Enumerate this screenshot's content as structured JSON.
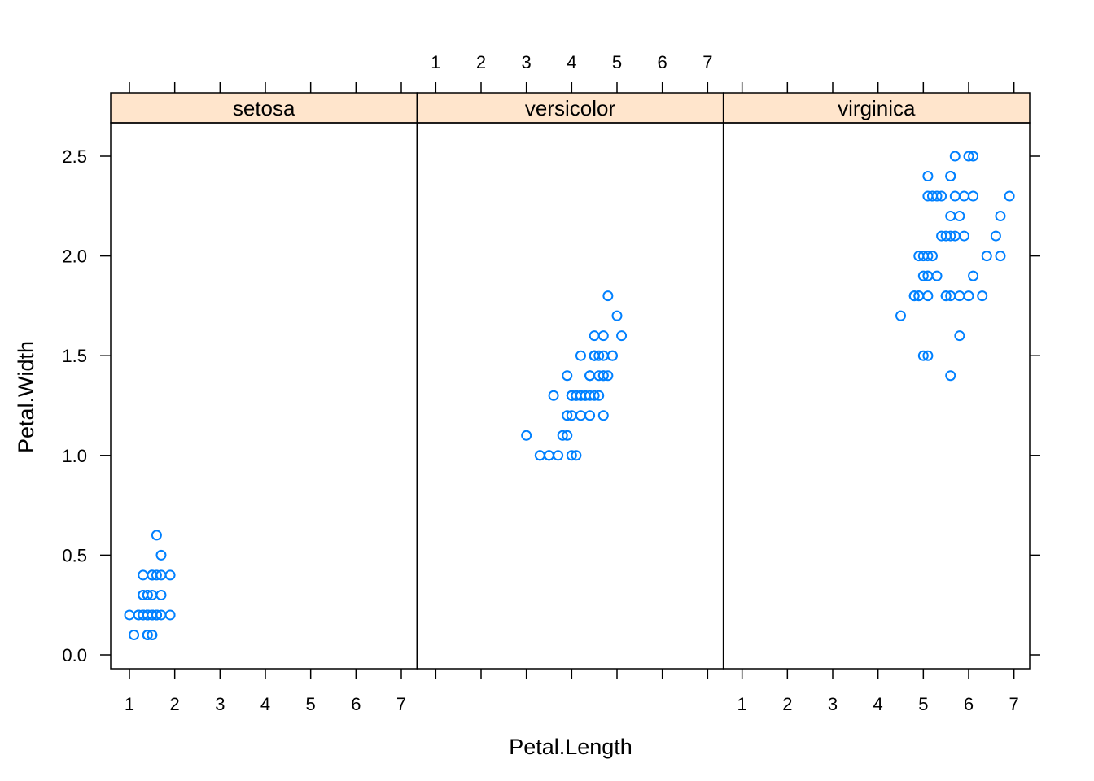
{
  "chart_data": {
    "type": "scatter",
    "layout": "lattice panels, 3 columns x 1 row",
    "xlabel": "Petal.Length",
    "ylabel": "Petal.Width",
    "xlim": [
      0.6,
      7.35
    ],
    "ylim": [
      -0.07,
      2.67
    ],
    "x_ticks": [
      "1",
      "2",
      "3",
      "4",
      "5",
      "6",
      "7"
    ],
    "y_ticks": [
      "0.0",
      "0.5",
      "1.0",
      "1.5",
      "2.0",
      "2.5"
    ],
    "point_color": "#0080ff",
    "strip_color": "#ffe5cc",
    "grid": false,
    "panels": [
      {
        "label": "setosa",
        "points": [
          [
            1.4,
            0.2
          ],
          [
            1.4,
            0.2
          ],
          [
            1.3,
            0.2
          ],
          [
            1.5,
            0.2
          ],
          [
            1.4,
            0.2
          ],
          [
            1.7,
            0.4
          ],
          [
            1.4,
            0.3
          ],
          [
            1.5,
            0.2
          ],
          [
            1.4,
            0.2
          ],
          [
            1.5,
            0.1
          ],
          [
            1.5,
            0.2
          ],
          [
            1.6,
            0.2
          ],
          [
            1.4,
            0.1
          ],
          [
            1.1,
            0.1
          ],
          [
            1.2,
            0.2
          ],
          [
            1.5,
            0.4
          ],
          [
            1.3,
            0.4
          ],
          [
            1.4,
            0.3
          ],
          [
            1.7,
            0.3
          ],
          [
            1.5,
            0.3
          ],
          [
            1.7,
            0.2
          ],
          [
            1.5,
            0.4
          ],
          [
            1.0,
            0.2
          ],
          [
            1.7,
            0.5
          ],
          [
            1.9,
            0.2
          ],
          [
            1.6,
            0.2
          ],
          [
            1.6,
            0.4
          ],
          [
            1.5,
            0.2
          ],
          [
            1.4,
            0.2
          ],
          [
            1.6,
            0.2
          ],
          [
            1.6,
            0.2
          ],
          [
            1.5,
            0.4
          ],
          [
            1.5,
            0.1
          ],
          [
            1.4,
            0.2
          ],
          [
            1.5,
            0.2
          ],
          [
            1.2,
            0.2
          ],
          [
            1.3,
            0.2
          ],
          [
            1.4,
            0.1
          ],
          [
            1.3,
            0.2
          ],
          [
            1.5,
            0.2
          ],
          [
            1.3,
            0.3
          ],
          [
            1.3,
            0.3
          ],
          [
            1.3,
            0.2
          ],
          [
            1.6,
            0.6
          ],
          [
            1.9,
            0.4
          ],
          [
            1.4,
            0.3
          ],
          [
            1.6,
            0.2
          ],
          [
            1.4,
            0.2
          ],
          [
            1.5,
            0.2
          ],
          [
            1.4,
            0.2
          ]
        ]
      },
      {
        "label": "versicolor",
        "points": [
          [
            4.7,
            1.4
          ],
          [
            4.5,
            1.5
          ],
          [
            4.9,
            1.5
          ],
          [
            4.0,
            1.3
          ],
          [
            4.6,
            1.5
          ],
          [
            4.5,
            1.3
          ],
          [
            4.7,
            1.6
          ],
          [
            3.3,
            1.0
          ],
          [
            4.6,
            1.3
          ],
          [
            3.9,
            1.4
          ],
          [
            3.5,
            1.0
          ],
          [
            4.2,
            1.5
          ],
          [
            4.0,
            1.0
          ],
          [
            4.7,
            1.4
          ],
          [
            3.6,
            1.3
          ],
          [
            4.4,
            1.4
          ],
          [
            4.5,
            1.5
          ],
          [
            4.1,
            1.0
          ],
          [
            4.5,
            1.5
          ],
          [
            3.9,
            1.1
          ],
          [
            4.8,
            1.8
          ],
          [
            4.0,
            1.3
          ],
          [
            4.9,
            1.5
          ],
          [
            4.7,
            1.2
          ],
          [
            4.3,
            1.3
          ],
          [
            4.4,
            1.4
          ],
          [
            4.8,
            1.4
          ],
          [
            5.0,
            1.7
          ],
          [
            4.5,
            1.5
          ],
          [
            3.5,
            1.0
          ],
          [
            3.8,
            1.1
          ],
          [
            3.7,
            1.0
          ],
          [
            3.9,
            1.2
          ],
          [
            5.1,
            1.6
          ],
          [
            4.5,
            1.5
          ],
          [
            4.5,
            1.6
          ],
          [
            4.7,
            1.5
          ],
          [
            4.4,
            1.3
          ],
          [
            4.1,
            1.3
          ],
          [
            4.0,
            1.3
          ],
          [
            4.4,
            1.2
          ],
          [
            4.6,
            1.4
          ],
          [
            4.0,
            1.2
          ],
          [
            3.3,
            1.0
          ],
          [
            4.2,
            1.3
          ],
          [
            4.2,
            1.2
          ],
          [
            4.2,
            1.3
          ],
          [
            4.3,
            1.3
          ],
          [
            3.0,
            1.1
          ],
          [
            4.1,
            1.3
          ]
        ]
      },
      {
        "label": "virginica",
        "points": [
          [
            6.0,
            2.5
          ],
          [
            5.1,
            1.9
          ],
          [
            5.9,
            2.1
          ],
          [
            5.6,
            1.8
          ],
          [
            5.8,
            2.2
          ],
          [
            6.6,
            2.1
          ],
          [
            4.5,
            1.7
          ],
          [
            6.3,
            1.8
          ],
          [
            5.8,
            1.8
          ],
          [
            6.1,
            2.5
          ],
          [
            5.1,
            2.0
          ],
          [
            5.3,
            1.9
          ],
          [
            5.5,
            2.1
          ],
          [
            5.0,
            2.0
          ],
          [
            5.1,
            2.4
          ],
          [
            5.3,
            2.3
          ],
          [
            5.5,
            1.8
          ],
          [
            6.7,
            2.2
          ],
          [
            6.9,
            2.3
          ],
          [
            5.0,
            1.5
          ],
          [
            5.7,
            2.3
          ],
          [
            4.9,
            2.0
          ],
          [
            6.7,
            2.0
          ],
          [
            4.9,
            1.8
          ],
          [
            5.7,
            2.1
          ],
          [
            6.0,
            1.8
          ],
          [
            4.8,
            1.8
          ],
          [
            4.9,
            1.8
          ],
          [
            5.6,
            2.1
          ],
          [
            5.8,
            1.6
          ],
          [
            6.1,
            1.9
          ],
          [
            6.4,
            2.0
          ],
          [
            5.6,
            2.2
          ],
          [
            5.1,
            1.5
          ],
          [
            5.6,
            1.4
          ],
          [
            6.1,
            2.3
          ],
          [
            5.6,
            2.4
          ],
          [
            5.5,
            1.8
          ],
          [
            4.8,
            1.8
          ],
          [
            5.4,
            2.1
          ],
          [
            5.6,
            2.4
          ],
          [
            5.1,
            2.3
          ],
          [
            5.1,
            1.9
          ],
          [
            5.9,
            2.3
          ],
          [
            5.7,
            2.5
          ],
          [
            5.2,
            2.3
          ],
          [
            5.0,
            1.9
          ],
          [
            5.2,
            2.0
          ],
          [
            5.4,
            2.3
          ],
          [
            5.1,
            1.8
          ]
        ]
      }
    ]
  }
}
